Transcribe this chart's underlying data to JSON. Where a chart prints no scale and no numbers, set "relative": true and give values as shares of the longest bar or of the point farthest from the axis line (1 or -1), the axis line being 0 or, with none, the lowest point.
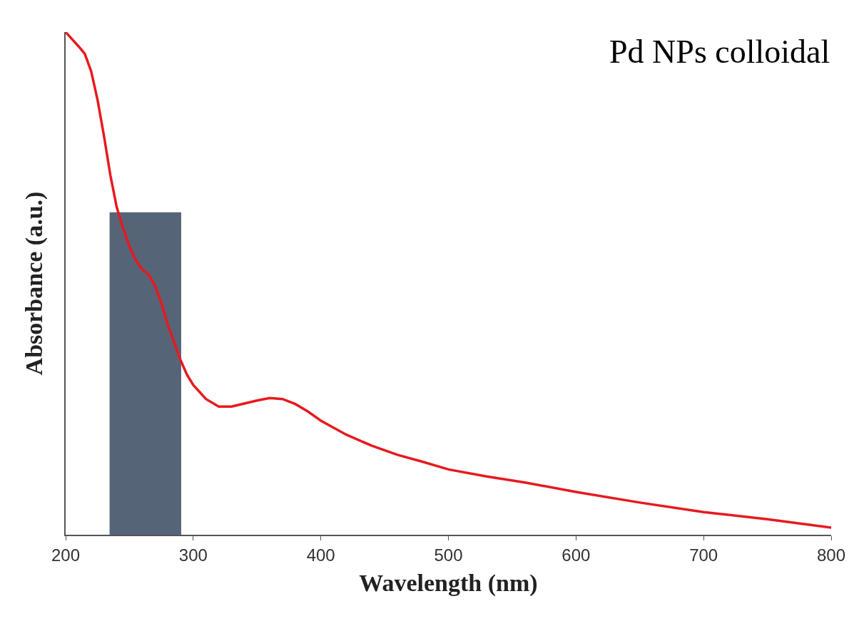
{
  "chart_data": {
    "type": "line",
    "xlabel": "Wavelength (nm)",
    "ylabel": "Absorbance (a.u.)",
    "relative": true,
    "xlim": [
      200,
      800
    ],
    "xticks": [
      200,
      300,
      400,
      500,
      600,
      700,
      800
    ],
    "grid": false,
    "marker": "none",
    "bands": [
      {
        "axis": "x",
        "from": 235,
        "to": 290,
        "color": "#44546a"
      }
    ],
    "line_style": "solid",
    "annotations": [
      "Pd NPs colloidal"
    ],
    "series": [
      {
        "color": "#e8191e",
        "x": [
          200,
          205,
          210,
          215,
          220,
          225,
          230,
          235,
          240,
          245,
          250,
          255,
          260,
          265,
          270,
          275,
          280,
          285,
          290,
          295,
          300,
          310,
          320,
          330,
          340,
          350,
          360,
          370,
          380,
          390,
          400,
          420,
          440,
          460,
          480,
          500,
          530,
          560,
          600,
          650,
          700,
          750,
          800
        ],
        "values": [
          1.0,
          0.986,
          0.972,
          0.957,
          0.922,
          0.865,
          0.794,
          0.716,
          0.652,
          0.61,
          0.574,
          0.546,
          0.528,
          0.518,
          0.496,
          0.461,
          0.418,
          0.383,
          0.348,
          0.319,
          0.298,
          0.27,
          0.255,
          0.255,
          0.261,
          0.267,
          0.272,
          0.27,
          0.26,
          0.245,
          0.227,
          0.199,
          0.177,
          0.159,
          0.145,
          0.13,
          0.116,
          0.104,
          0.085,
          0.064,
          0.045,
          0.031,
          0.014
        ]
      }
    ]
  }
}
